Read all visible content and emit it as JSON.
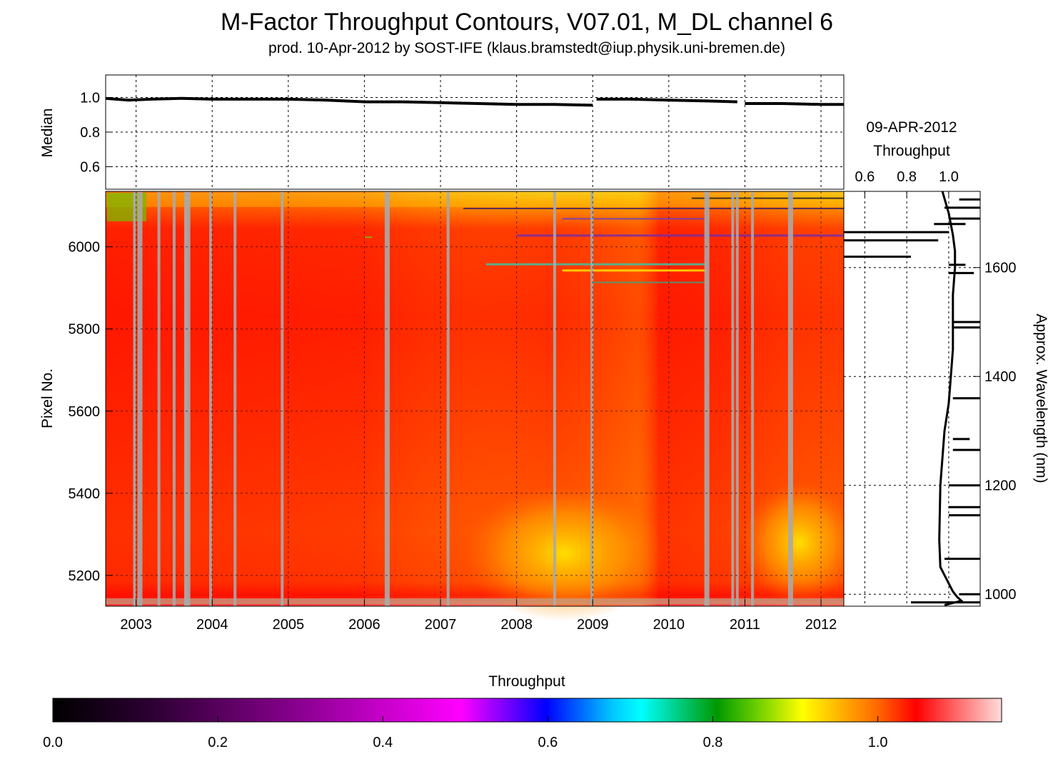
{
  "title": "M-Factor Throughput Contours, V07.01, M_DL channel 6",
  "subtitle": "prod. 10-Apr-2012 by SOST-IFE (klaus.bramstedt@iup.physik.uni-bremen.de)",
  "chart_data": [
    {
      "type": "line",
      "panel": "median-timeseries",
      "ylabel": "Median",
      "xlim": [
        2002.6,
        2012.3
      ],
      "ylim": [
        0.47,
        1.13
      ],
      "yticks": [
        0.6,
        0.8,
        1.0
      ],
      "ytick_labels": [
        "0.6",
        "0.8",
        "1.0"
      ],
      "grid": true,
      "series": [
        {
          "x": [
            2002.6,
            2002.9,
            2003.2,
            2003.6,
            2004.0,
            2004.5,
            2005.0,
            2005.5,
            2006.0,
            2006.5,
            2007.0,
            2007.5,
            2008.0,
            2008.5,
            2009.0
          ],
          "y": [
            0.995,
            0.985,
            0.99,
            0.995,
            0.99,
            0.99,
            0.99,
            0.985,
            0.975,
            0.975,
            0.97,
            0.965,
            0.96,
            0.96,
            0.955
          ]
        },
        {
          "x": [
            2009.05,
            2009.5,
            2010.0,
            2010.5,
            2010.9
          ],
          "y": [
            0.99,
            0.99,
            0.985,
            0.98,
            0.975
          ]
        },
        {
          "x": [
            2011.0,
            2011.5,
            2012.0,
            2012.3
          ],
          "y": [
            0.965,
            0.965,
            0.96,
            0.96
          ]
        }
      ]
    },
    {
      "type": "heatmap",
      "panel": "throughput-contours",
      "ylabel": "Pixel No.",
      "xlim": [
        2002.6,
        2012.3
      ],
      "ylim": [
        5125,
        6135
      ],
      "xticks": [
        2003,
        2004,
        2005,
        2006,
        2007,
        2008,
        2009,
        2010,
        2011,
        2012
      ],
      "xtick_labels": [
        "2003",
        "2004",
        "2005",
        "2006",
        "2007",
        "2008",
        "2009",
        "2010",
        "2011",
        "2012"
      ],
      "yticks": [
        5200,
        5400,
        5600,
        5800,
        6000
      ],
      "ytick_labels": [
        "5200",
        "5400",
        "5600",
        "5800",
        "6000"
      ],
      "colorbar": {
        "label": "Throughput",
        "range": [
          0.0,
          1.15
        ],
        "ticks": [
          0.0,
          0.2,
          0.4,
          0.6,
          0.8,
          1.0
        ],
        "tick_labels": [
          "0.0",
          "0.2",
          "0.4",
          "0.6",
          "0.8",
          "1.0"
        ]
      },
      "data_gaps_years": [
        2002.98,
        2003.05,
        2003.3,
        2003.5,
        2003.65,
        2003.68,
        2003.98,
        2004.3,
        2004.92,
        2006.3,
        2007.1,
        2008.5,
        2008.99,
        2010.5,
        2010.84,
        2010.9,
        2011.1,
        2011.6
      ]
    },
    {
      "type": "line",
      "panel": "current-throughput-profile",
      "title": "09-APR-2012",
      "xlabel": "Throughput",
      "xlim": [
        0.5,
        1.15
      ],
      "xticks": [
        0.6,
        0.8,
        1.0
      ],
      "xtick_labels": [
        "0.6",
        "0.8",
        "1.0"
      ],
      "ylabel": "Approx. Wavelength (nm)",
      "ylim": [
        978,
        1740
      ],
      "yticks": [
        1000,
        1200,
        1400,
        1600
      ],
      "ytick_labels": [
        "1000",
        "1200",
        "1400",
        "1600"
      ],
      "grid": true,
      "series": [
        {
          "x": [
            0.97,
            1.0,
            1.02,
            1.03,
            1.03,
            1.02,
            1.02,
            1.02,
            1.01,
            1.0,
            0.98,
            0.96,
            0.955,
            0.96,
            1.0,
            1.02,
            1.04,
            1.06,
            0.98
          ],
          "y": [
            1740,
            1700,
            1660,
            1630,
            1600,
            1550,
            1500,
            1450,
            1400,
            1350,
            1300,
            1200,
            1100,
            1050,
            1020,
            1005,
            995,
            988,
            980
          ]
        }
      ]
    }
  ]
}
